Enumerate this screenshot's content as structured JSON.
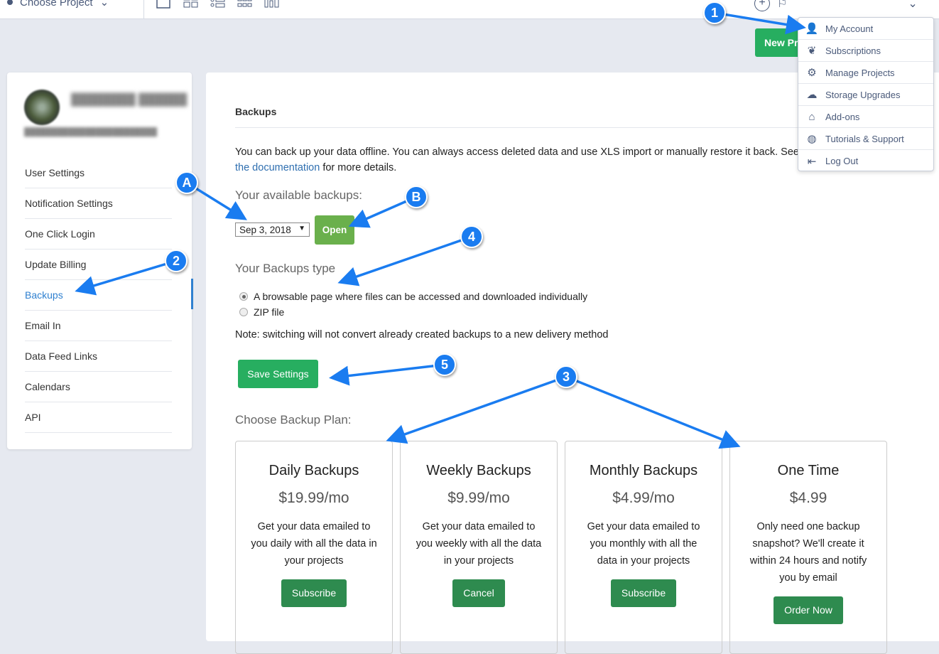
{
  "topbar": {
    "project_label": "Choose Project",
    "new_project": "New Project"
  },
  "account_menu": {
    "items": [
      {
        "label": "My Account",
        "icon": "user-edit-icon"
      },
      {
        "label": "Subscriptions",
        "icon": "leaf-icon"
      },
      {
        "label": "Manage Projects",
        "icon": "gear-icon"
      },
      {
        "label": "Storage Upgrades",
        "icon": "cloud-icon"
      },
      {
        "label": "Add-ons",
        "icon": "store-icon"
      },
      {
        "label": "Tutorials & Support",
        "icon": "lifebuoy-icon"
      },
      {
        "label": "Log Out",
        "icon": "logout-icon"
      }
    ]
  },
  "sidebar": {
    "items": [
      {
        "label": "User Settings"
      },
      {
        "label": "Notification Settings"
      },
      {
        "label": "One Click Login"
      },
      {
        "label": "Update Billing"
      },
      {
        "label": "Backups",
        "active": true
      },
      {
        "label": "Email In"
      },
      {
        "label": "Data Feed Links"
      },
      {
        "label": "Calendars"
      },
      {
        "label": "API"
      }
    ]
  },
  "main": {
    "title": "Backups",
    "intro": "You can back up your data offline. You can always access deleted data and use XLS import or manually restore it back. See",
    "intro_link": "the documentation",
    "intro_tail": " for more details.",
    "available_label": "Your available backups:",
    "backup_select": "Sep 3, 2018",
    "open_button": "Open",
    "type_label": "Your Backups type",
    "type_options": [
      {
        "label": "A browsable page where files can be accessed and downloaded individually",
        "checked": true
      },
      {
        "label": "ZIP file",
        "checked": false
      }
    ],
    "note": "Note: switching will not convert already created backups to a new delivery method",
    "save_button": "Save Settings",
    "plan_label": "Choose Backup Plan:",
    "plans": [
      {
        "title": "Daily Backups",
        "price": "$19.99/mo",
        "desc": "Get your data emailed to you daily with all the data in your projects",
        "button": "Subscribe"
      },
      {
        "title": "Weekly Backups",
        "price": "$9.99/mo",
        "desc": "Get your data emailed to you weekly with all the data in your projects",
        "button": "Cancel"
      },
      {
        "title": "Monthly Backups",
        "price": "$4.99/mo",
        "desc": "Get your data emailed to you monthly with all the data in your projects",
        "button": "Subscribe"
      },
      {
        "title": "One Time",
        "price": "$4.99",
        "desc": "Only need one backup snapshot? We'll create it within 24 hours and notify you by email",
        "button": "Order Now"
      }
    ]
  },
  "annotations": {
    "c1": "1",
    "c2": "2",
    "c3": "3",
    "c4": "4",
    "c5": "5",
    "cA": "A",
    "cB": "B",
    "color": "#1a7cf0"
  }
}
